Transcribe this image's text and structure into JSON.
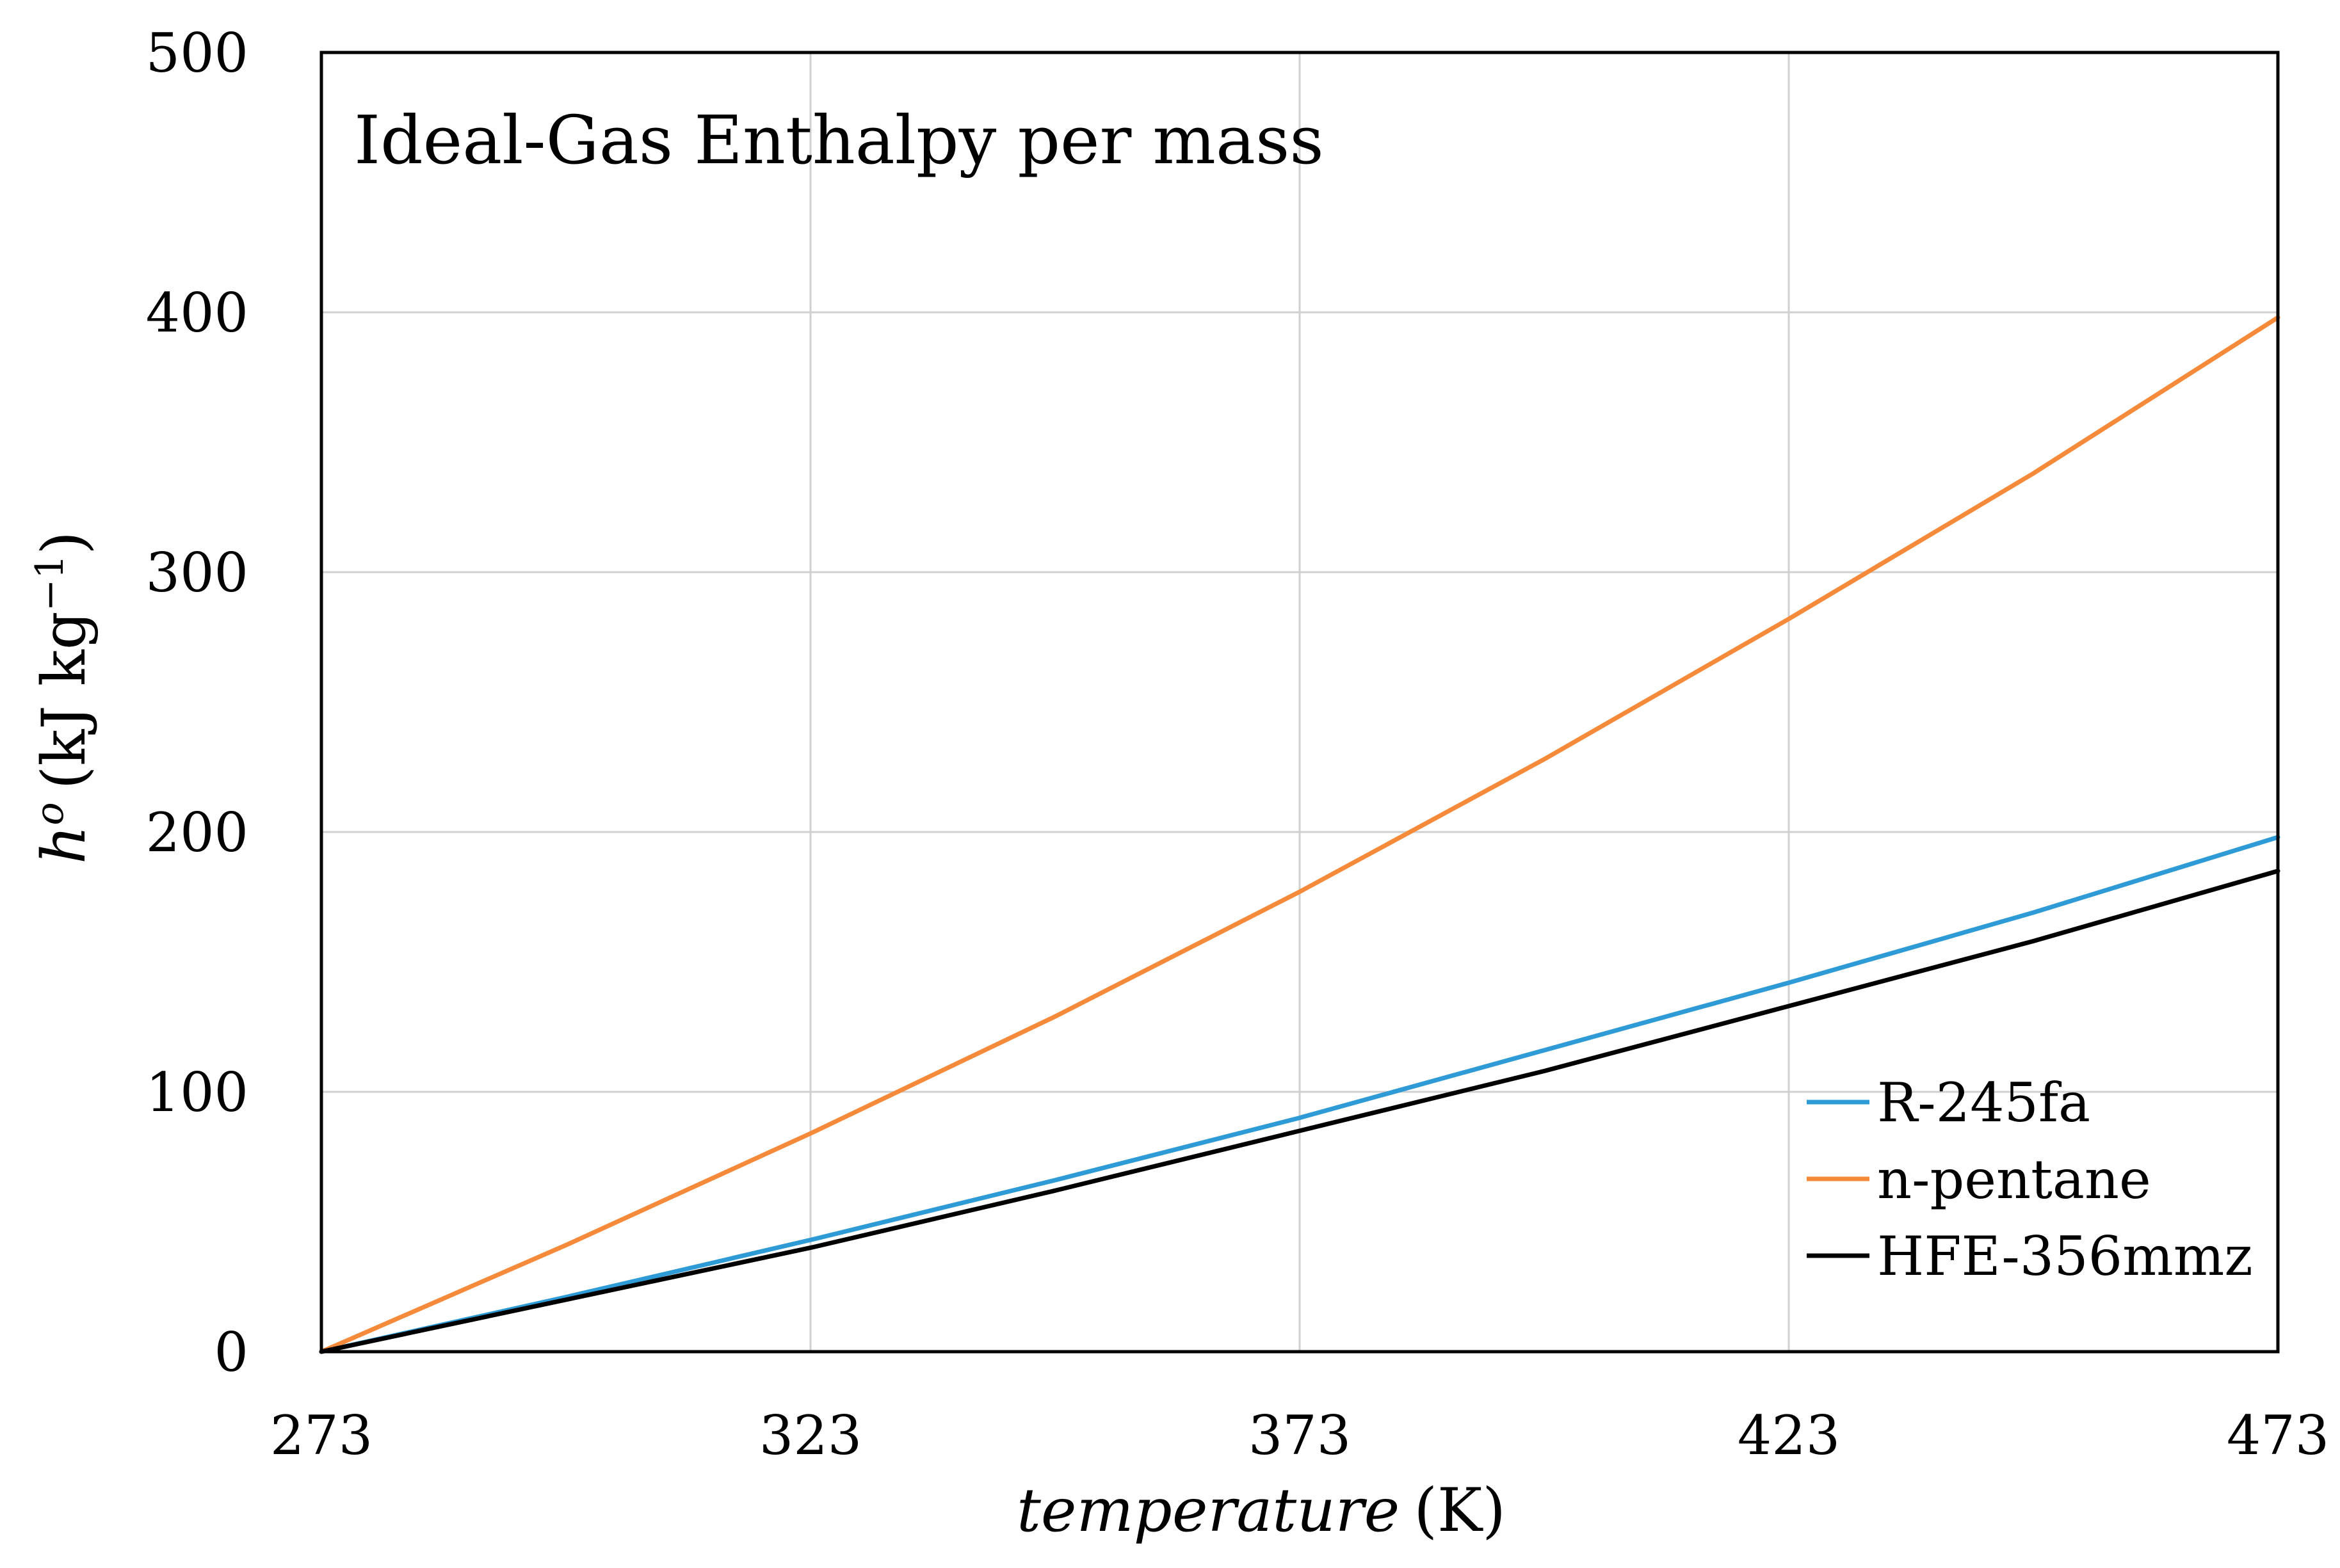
{
  "chart_data": {
    "type": "line",
    "title": "Ideal-Gas Enthalpy per mass",
    "xlabel": {
      "italic": "temperature",
      "unit": "(K)"
    },
    "ylabel": {
      "symbol": "h",
      "superscript": "o",
      "unit_prefix": "(kJ kg",
      "unit_exp": "−1",
      "unit_suffix": ")"
    },
    "xlim": [
      273,
      473
    ],
    "ylim": [
      0,
      500
    ],
    "xticks": [
      273,
      323,
      373,
      423,
      473
    ],
    "yticks": [
      0,
      100,
      200,
      300,
      400,
      500
    ],
    "grid": true,
    "legend_position": "bottom-right",
    "x": [
      273,
      298,
      323,
      348,
      373,
      398,
      423,
      448,
      473
    ],
    "series": [
      {
        "name": "R-245fa",
        "color": "#2e9bd6",
        "values": [
          0,
          21,
          43,
          66,
          90,
          116,
          142,
          169,
          198
        ]
      },
      {
        "name": "n-pentane",
        "color": "#f58a3a",
        "values": [
          0,
          41,
          84,
          129,
          177,
          228,
          282,
          338,
          398
        ]
      },
      {
        "name": "HFE-356mmz",
        "color": "#000000",
        "values": [
          0,
          20,
          40,
          62,
          85,
          108,
          133,
          158,
          185
        ]
      }
    ]
  }
}
